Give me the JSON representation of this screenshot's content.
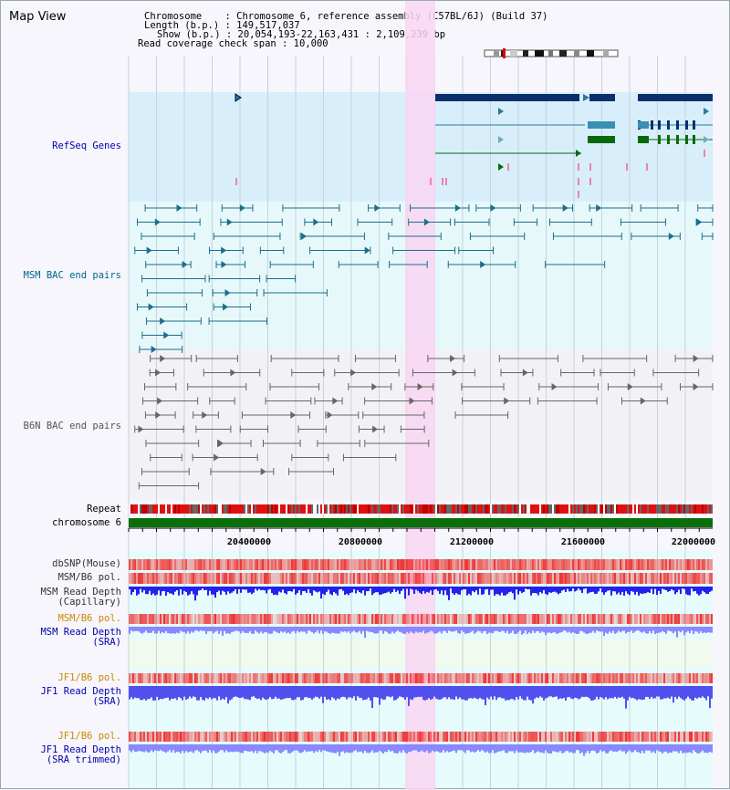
{
  "map_view": {
    "title": "Map View",
    "info": {
      "chromosome_line": "Chromosome    : Chromosome 6, reference assembly (C57BL/6J) (Build 37)",
      "length_line": "Length (b.p.) : 149,517,037",
      "show_line": "Show (b.p.) : 20,054,193-22,163,431 : 2,109,239 bp",
      "coverage_line": "Read coverage check span : 10,000"
    },
    "tracks": [
      {
        "id": "refseq",
        "label": "RefSeq Genes",
        "color": "#0000aa"
      },
      {
        "id": "msm-bac",
        "label": "MSM BAC end pairs",
        "color": "#006688"
      },
      {
        "id": "b6n-bac",
        "label": "B6N BAC end pairs",
        "color": "#555555"
      },
      {
        "id": "repeat",
        "label": "Repeat",
        "color": "#000000"
      },
      {
        "id": "chromosome",
        "label": "chromosome 6",
        "color": "#000000"
      },
      {
        "id": "dbsnp",
        "label": "dbSNP(Mouse)",
        "color": "#333333"
      },
      {
        "id": "msm-pol-cap",
        "label": "MSM/B6 pol.",
        "color": "#333333"
      },
      {
        "id": "msm-depth-cap",
        "label": "MSM Read Depth",
        "label2": "(Capillary)",
        "color": "#333333"
      },
      {
        "id": "msm-pol-sra",
        "label": "MSM/B6 pol.",
        "color": "#cc8800"
      },
      {
        "id": "msm-depth-sra",
        "label": "MSM Read Depth",
        "label2": "(SRA)",
        "color": "#0000aa"
      },
      {
        "id": "jf1-pol",
        "label": "JF1/B6 pol.",
        "color": "#cc8800"
      },
      {
        "id": "jf1-depth",
        "label": "JF1 Read Depth",
        "label2": "(SRA)",
        "color": "#0000aa"
      },
      {
        "id": "jf1-pol-trim",
        "label": "JF1/B6 pol.",
        "color": "#cc8800"
      },
      {
        "id": "jf1-depth-trim",
        "label": "JF1 Read Depth",
        "label2": "(SRA trimmed)",
        "color": "#0000aa"
      }
    ],
    "axis_ticks": [
      "20400000",
      "20800000",
      "21200000",
      "21600000",
      "22000000"
    ],
    "highlight_color": "#f9d6f2",
    "colors": {
      "gene_dark": "#0b2f6b",
      "gene_mid": "#2a7a9a",
      "gene_green": "#0a6a0a",
      "bac_msm": "#1a6e8c",
      "bac_b6n": "#666666",
      "chromosome_bar": "#0a6e0a",
      "depth_blue": "#2222ee",
      "depth_light": "#8888ff",
      "snp_red": "#ee3333"
    }
  }
}
